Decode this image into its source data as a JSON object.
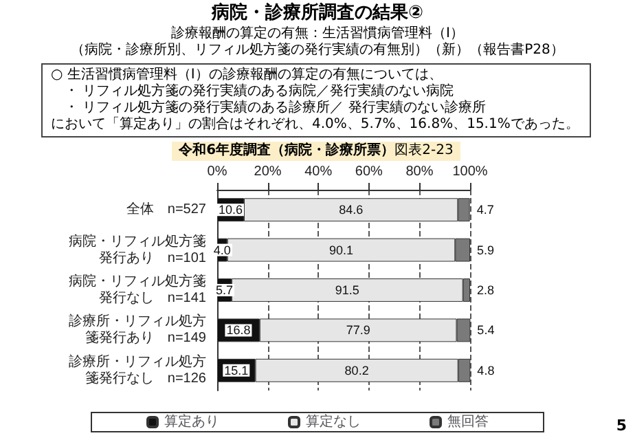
{
  "chart_data": {
    "type": "bar",
    "orientation": "horizontal",
    "stacked": true,
    "title": "病院・診療所調査の結果②",
    "subtitle": "診療報酬の算定の有無：生活習慣病管理料（Ⅰ）",
    "annotations": [
      "（病院・診療所別、リフィル処方箋の発行実績の有無別）（新）（報告書P28）",
      "○ 生活習慣病管理料（Ⅰ）の診療報酬の算定の有無については、",
      "・ リフィル処方箋の発行実績のある病院／発行実績のない病院",
      "・ リフィル処方箋の発行実績のある診療所／ 発行実績のない診療所",
      "において「算定あり」の割合はそれぞれ、4.0%、5.7%、16.8%、15.1%であった。",
      "令和6年度調査（病院・診療所票）",
      "図表2-23",
      "5"
    ],
    "categories": [
      "全体　n=527",
      "病院・リフィル処方箋発行あり　n=101",
      "病院・リフィル処方箋発行なし　n=141",
      "診療所・リフィル処方箋発行あり　n=149",
      "診療所・リフィル処方箋発行なし　n=126"
    ],
    "series": [
      {
        "name": "算定あり",
        "color": "#111111",
        "values": [
          10.6,
          4.0,
          5.7,
          16.8,
          15.1
        ],
        "value_labels": [
          "10.6",
          "4.0",
          "5.7",
          "16.8",
          "15.1"
        ]
      },
      {
        "name": "算定なし",
        "color": "#e6e6e6",
        "values": [
          84.6,
          90.1,
          91.5,
          77.9,
          80.2
        ],
        "value_labels": [
          "84.6",
          "90.1",
          "91.5",
          "77.9",
          "80.2"
        ]
      },
      {
        "name": "無回答",
        "color": "#7a7a7a",
        "values": [
          4.7,
          5.9,
          2.8,
          5.4,
          4.8
        ],
        "value_labels": [
          "4.7",
          "5.9",
          "2.8",
          "5.4",
          "4.8"
        ]
      }
    ],
    "xlim": [
      0,
      100
    ],
    "xticks": [
      {
        "value": 0,
        "label": "0%"
      },
      {
        "value": 20,
        "label": "20%"
      },
      {
        "value": 40,
        "label": "40%"
      },
      {
        "value": 60,
        "label": "60%"
      },
      {
        "value": 80,
        "label": "80%"
      },
      {
        "value": 100,
        "label": "100%"
      }
    ],
    "grid": "x",
    "legend": "bottom"
  }
}
